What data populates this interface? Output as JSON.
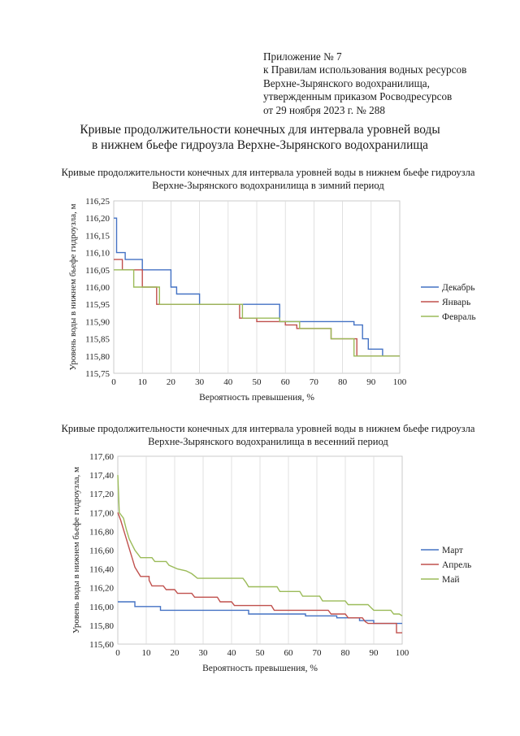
{
  "appendix": {
    "lines": [
      "Приложение № 7",
      "к Правилам использования водных ресурсов",
      "Верхне-Зырянского водохранилища,",
      "утвержденным приказом Росводресурсов",
      "от 29 ноября 2023 г. № 288"
    ]
  },
  "heading": {
    "line1": "Кривые продолжительности конечных для интервала уровней воды",
    "line2": "в нижнем бьефе гидроузла Верхне-Зырянского водохранилища"
  },
  "chart_data": [
    {
      "type": "line",
      "title_line1": "Кривые продолжительности конечных для интервала уровней воды в нижнем бьефе гидроузла",
      "title_line2": "Верхне-Зырянского водохранилища в зимний период",
      "xlabel": "Вероятность превышения, %",
      "ylabel": "Уровень воды в нижнем бьефе гидроузла, м",
      "xlim": [
        0,
        100
      ],
      "ylim": [
        115.75,
        116.25
      ],
      "xticks": [
        "0",
        "10",
        "20",
        "30",
        "40",
        "50",
        "60",
        "70",
        "80",
        "90",
        "100"
      ],
      "yticks": [
        "115,75",
        "115,80",
        "115,85",
        "115,90",
        "115,95",
        "116,00",
        "116,05",
        "116,10",
        "116,15",
        "116,20",
        "116,25"
      ],
      "grid": "vertical",
      "legend_position": "right",
      "series": [
        {
          "name": "Декабрь",
          "color": "#4472c4",
          "points": [
            [
              0,
              116.2
            ],
            [
              1,
              116.2
            ],
            [
              1,
              116.1
            ],
            [
              4,
              116.1
            ],
            [
              4,
              116.08
            ],
            [
              10,
              116.08
            ],
            [
              10,
              116.05
            ],
            [
              20,
              116.05
            ],
            [
              20,
              116.0
            ],
            [
              22,
              116.0
            ],
            [
              22,
              115.98
            ],
            [
              30,
              115.98
            ],
            [
              30,
              115.95
            ],
            [
              58,
              115.95
            ],
            [
              58,
              115.9
            ],
            [
              84,
              115.9
            ],
            [
              84,
              115.89
            ],
            [
              87,
              115.89
            ],
            [
              87,
              115.85
            ],
            [
              89,
              115.85
            ],
            [
              89,
              115.82
            ],
            [
              94,
              115.82
            ],
            [
              94,
              115.8
            ],
            [
              100,
              115.8
            ]
          ]
        },
        {
          "name": "Январь",
          "color": "#c0504d",
          "points": [
            [
              0,
              116.08
            ],
            [
              3,
              116.08
            ],
            [
              3,
              116.05
            ],
            [
              10,
              116.05
            ],
            [
              10,
              116.0
            ],
            [
              15,
              116.0
            ],
            [
              15,
              115.95
            ],
            [
              44,
              115.95
            ],
            [
              44,
              115.91
            ],
            [
              50,
              115.91
            ],
            [
              50,
              115.9
            ],
            [
              60,
              115.9
            ],
            [
              60,
              115.89
            ],
            [
              64,
              115.89
            ],
            [
              64,
              115.88
            ],
            [
              76,
              115.88
            ],
            [
              76,
              115.85
            ],
            [
              85,
              115.85
            ],
            [
              85,
              115.8
            ],
            [
              100,
              115.8
            ]
          ]
        },
        {
          "name": "Февраль",
          "color": "#9bbb59",
          "points": [
            [
              0,
              116.05
            ],
            [
              7,
              116.05
            ],
            [
              7,
              116.0
            ],
            [
              16,
              116.0
            ],
            [
              16,
              115.95
            ],
            [
              45,
              115.95
            ],
            [
              45,
              115.91
            ],
            [
              58,
              115.91
            ],
            [
              58,
              115.9
            ],
            [
              65,
              115.9
            ],
            [
              65,
              115.88
            ],
            [
              76,
              115.88
            ],
            [
              76,
              115.85
            ],
            [
              84,
              115.85
            ],
            [
              84,
              115.8
            ],
            [
              100,
              115.8
            ]
          ]
        }
      ]
    },
    {
      "type": "line",
      "title_line1": "Кривые продолжительности конечных для интервала уровней воды в нижнем бьефе гидроузла",
      "title_line2": "Верхне-Зырянского водохранилища в весенний период",
      "xlabel": "Вероятность превышения, %",
      "ylabel": "Уровень воды в нижнем бьефе гидроузла, м",
      "xlim": [
        0,
        100
      ],
      "ylim": [
        115.6,
        117.6
      ],
      "xticks": [
        "0",
        "10",
        "20",
        "30",
        "40",
        "50",
        "60",
        "70",
        "80",
        "90",
        "100"
      ],
      "yticks": [
        "115,60",
        "115,80",
        "116,00",
        "116,20",
        "116,40",
        "116,60",
        "116,80",
        "117,00",
        "117,20",
        "117,40",
        "117,60"
      ],
      "grid": "vertical",
      "legend_position": "right",
      "series": [
        {
          "name": "Март",
          "color": "#4472c4",
          "points": [
            [
              0,
              116.05
            ],
            [
              6,
              116.05
            ],
            [
              6,
              116.0
            ],
            [
              15,
              116.0
            ],
            [
              15,
              115.96
            ],
            [
              46,
              115.96
            ],
            [
              46,
              115.92
            ],
            [
              66,
              115.92
            ],
            [
              66,
              115.9
            ],
            [
              77,
              115.9
            ],
            [
              77,
              115.88
            ],
            [
              85,
              115.88
            ],
            [
              85,
              115.85
            ],
            [
              90,
              115.85
            ],
            [
              90,
              115.82
            ],
            [
              100,
              115.82
            ]
          ]
        },
        {
          "name": "Апрель",
          "color": "#c0504d",
          "points": [
            [
              0,
              117.0
            ],
            [
              1,
              116.92
            ],
            [
              2,
              116.82
            ],
            [
              3,
              116.72
            ],
            [
              4,
              116.62
            ],
            [
              5,
              116.52
            ],
            [
              6,
              116.42
            ],
            [
              7,
              116.37
            ],
            [
              8,
              116.32
            ],
            [
              11,
              116.32
            ],
            [
              11,
              116.28
            ],
            [
              12,
              116.22
            ],
            [
              16,
              116.22
            ],
            [
              17,
              116.18
            ],
            [
              20,
              116.18
            ],
            [
              21,
              116.14
            ],
            [
              26,
              116.14
            ],
            [
              27,
              116.1
            ],
            [
              35,
              116.1
            ],
            [
              36,
              116.05
            ],
            [
              40,
              116.05
            ],
            [
              41,
              116.01
            ],
            [
              54,
              116.01
            ],
            [
              55,
              115.96
            ],
            [
              74,
              115.96
            ],
            [
              75,
              115.92
            ],
            [
              80,
              115.92
            ],
            [
              81,
              115.88
            ],
            [
              86,
              115.88
            ],
            [
              87,
              115.84
            ],
            [
              88,
              115.82
            ],
            [
              98,
              115.82
            ],
            [
              98,
              115.72
            ],
            [
              100,
              115.72
            ]
          ]
        },
        {
          "name": "Май",
          "color": "#9bbb59",
          "points": [
            [
              0,
              117.4
            ],
            [
              0.5,
              117.0
            ],
            [
              2,
              116.94
            ],
            [
              3,
              116.82
            ],
            [
              4,
              116.72
            ],
            [
              5,
              116.66
            ],
            [
              6,
              116.6
            ],
            [
              7,
              116.56
            ],
            [
              8,
              116.52
            ],
            [
              12,
              116.52
            ],
            [
              13,
              116.48
            ],
            [
              17,
              116.48
            ],
            [
              18,
              116.44
            ],
            [
              21,
              116.4
            ],
            [
              24,
              116.38
            ],
            [
              26,
              116.35
            ],
            [
              28,
              116.3
            ],
            [
              44,
              116.3
            ],
            [
              45,
              116.26
            ],
            [
              46,
              116.21
            ],
            [
              56,
              116.21
            ],
            [
              57,
              116.16
            ],
            [
              64,
              116.16
            ],
            [
              65,
              116.11
            ],
            [
              71,
              116.11
            ],
            [
              72,
              116.06
            ],
            [
              80,
              116.06
            ],
            [
              81,
              116.02
            ],
            [
              88,
              116.02
            ],
            [
              89,
              115.99
            ],
            [
              90,
              115.96
            ],
            [
              96,
              115.96
            ],
            [
              97,
              115.92
            ],
            [
              99,
              115.92
            ],
            [
              100,
              115.9
            ]
          ]
        }
      ]
    }
  ]
}
